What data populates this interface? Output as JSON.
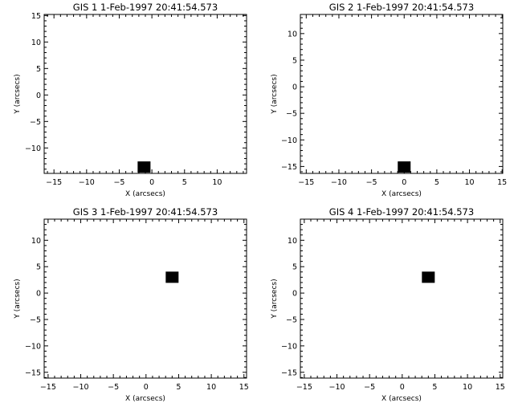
{
  "chart_data": [
    {
      "type": "scatter",
      "title": "GIS 1  1-Feb-1997 20:41:54.573",
      "xlabel": "X (arcsecs)",
      "ylabel": "Y (arcsecs)",
      "xlim": [
        -16.5,
        14.5
      ],
      "ylim": [
        -14.8,
        15.2
      ],
      "xticks": [
        -15,
        -10,
        -5,
        0,
        5,
        10
      ],
      "yticks": [
        -10,
        -5,
        0,
        5,
        10,
        15
      ],
      "points": [
        {
          "x": -1.2,
          "y": -13.6
        }
      ],
      "marker": "filled-square",
      "color": "#000000"
    },
    {
      "type": "scatter",
      "title": "GIS 2  1-Feb-1997 20:41:54.573",
      "xlabel": "X (arcsecs)",
      "ylabel": "Y (arcsecs)",
      "xlim": [
        -15.9,
        15.1
      ],
      "ylim": [
        -16.3,
        13.6
      ],
      "xticks": [
        -15,
        -10,
        -5,
        0,
        5,
        10,
        15
      ],
      "yticks": [
        -15,
        -10,
        -5,
        0,
        5,
        10
      ],
      "points": [
        {
          "x": 0.0,
          "y": -15.1
        }
      ],
      "marker": "filled-square",
      "color": "#000000"
    },
    {
      "type": "scatter",
      "title": "GIS 3  1-Feb-1997 20:41:54.573",
      "xlabel": "X (arcsecs)",
      "ylabel": "Y (arcsecs)",
      "xlim": [
        -15.6,
        15.4
      ],
      "ylim": [
        -16.1,
        14.0
      ],
      "xticks": [
        -15,
        -10,
        -5,
        0,
        5,
        10,
        15
      ],
      "yticks": [
        -15,
        -10,
        -5,
        0,
        5,
        10
      ],
      "points": [
        {
          "x": 4.0,
          "y": 3.0
        }
      ],
      "marker": "filled-square",
      "color": "#000000"
    },
    {
      "type": "scatter",
      "title": "GIS 4  1-Feb-1997 20:41:54.573",
      "xlabel": "X (arcsecs)",
      "ylabel": "Y (arcsecs)",
      "xlim": [
        -15.6,
        15.4
      ],
      "ylim": [
        -16.1,
        14.0
      ],
      "xticks": [
        -15,
        -10,
        -5,
        0,
        5,
        10,
        15
      ],
      "yticks": [
        -15,
        -10,
        -5,
        0,
        5,
        10
      ],
      "points": [
        {
          "x": 4.0,
          "y": 3.0
        }
      ],
      "marker": "filled-square",
      "color": "#000000"
    }
  ]
}
